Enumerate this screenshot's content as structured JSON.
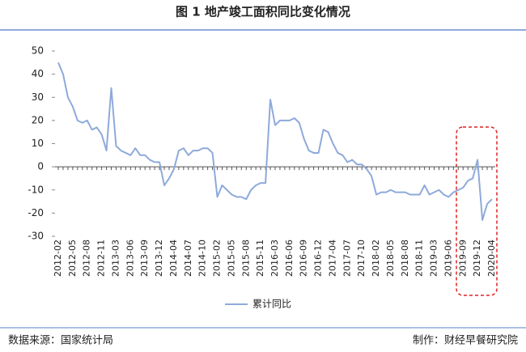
{
  "chart_data": {
    "type": "line",
    "title": "图 1  地产竣工面积同比变化情况",
    "categories": [
      "2012-02",
      null,
      null,
      "2012-05",
      null,
      null,
      "2012-08",
      null,
      null,
      "2012-11",
      null,
      null,
      "2013-03",
      null,
      null,
      "2013-06",
      null,
      null,
      "2013-09",
      null,
      null,
      "2013-12",
      null,
      null,
      "2014-04",
      null,
      null,
      "2014-07",
      null,
      null,
      "2014-10",
      null,
      null,
      "2015-02",
      null,
      null,
      "2015-05",
      null,
      null,
      "2015-08",
      null,
      null,
      "2015-11",
      null,
      null,
      "2016-03",
      null,
      null,
      "2016-06",
      null,
      null,
      "2016-09",
      null,
      null,
      "2016-12",
      null,
      null,
      "2017-04",
      null,
      null,
      "2017-07",
      null,
      null,
      "2017-10",
      null,
      null,
      "2018-02",
      null,
      null,
      "2018-05",
      null,
      null,
      "2018-08",
      null,
      null,
      "2018-11",
      null,
      null,
      "2019-03",
      null,
      null,
      "2019-06",
      null,
      null,
      "2019-09",
      null,
      null,
      "2019-12",
      null,
      null,
      "2020-04"
    ],
    "series": [
      {
        "name": "累计同比",
        "color": "#8eaadb",
        "values": [
          45,
          40,
          30,
          26,
          20,
          19,
          20,
          16,
          17,
          14,
          7,
          34,
          9,
          7,
          6,
          5,
          8,
          5,
          5,
          3,
          2,
          2,
          -8,
          -5,
          -1,
          7,
          8,
          5,
          7,
          7,
          8,
          8,
          6,
          -13,
          -8,
          -10,
          -12,
          -13,
          -13,
          -14,
          -10,
          -8,
          -7,
          -7,
          29,
          18,
          20,
          20,
          20,
          21,
          19,
          12,
          7,
          6,
          6,
          16,
          15,
          10,
          6,
          5,
          2,
          3,
          1,
          1,
          -1,
          -4,
          -12,
          -11,
          -11,
          -10,
          -11,
          -11,
          -11,
          -12,
          -12,
          -12,
          -8,
          -12,
          -11,
          -10,
          -12,
          -13,
          -11,
          -10,
          -9,
          -6,
          -5,
          3,
          -23,
          -16,
          -14
        ]
      }
    ],
    "ylim": [
      -30,
      50
    ],
    "yticks": [
      -30,
      -20,
      -10,
      0,
      10,
      20,
      30,
      40,
      50
    ]
  },
  "footer": {
    "source": "数据来源：国家统计局",
    "credit": "制作：财经早餐研究院"
  }
}
